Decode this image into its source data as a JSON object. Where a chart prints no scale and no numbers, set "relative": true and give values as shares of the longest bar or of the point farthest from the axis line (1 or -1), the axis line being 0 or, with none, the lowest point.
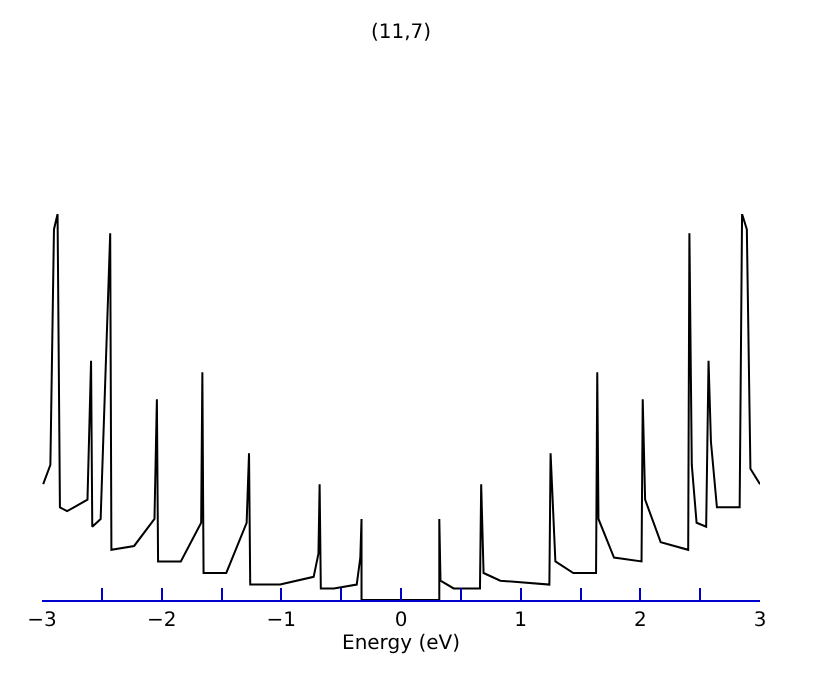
{
  "chart_data": {
    "type": "line",
    "title": "(11,7)",
    "xlabel": "Energy (eV)",
    "relative": true,
    "marker": "none",
    "line_style": "solid",
    "xlim": [
      -3,
      3
    ],
    "xticks": [
      -3,
      {
        "value": -2.5,
        "label": null
      },
      -2,
      {
        "value": -1.5,
        "label": null
      },
      -1,
      {
        "value": -0.5,
        "label": null
      },
      0,
      {
        "value": 0.5,
        "label": null
      },
      1,
      {
        "value": 1.5,
        "label": null
      },
      2,
      {
        "value": 2.5,
        "label": null
      },
      3
    ],
    "series": [
      {
        "color": "#000000",
        "x": [
          -2.99,
          -2.93,
          -2.9,
          -2.87,
          -2.85,
          -2.79,
          -2.62,
          -2.59,
          -2.58,
          -2.51,
          -2.43,
          -2.42,
          -2.23,
          -2.06,
          -2.04,
          -2.03,
          -1.84,
          -1.67,
          -1.66,
          -1.65,
          -1.46,
          -1.29,
          -1.27,
          -1.26,
          -1.01,
          -0.73,
          -0.69,
          -0.68,
          -0.67,
          -0.56,
          -0.37,
          -0.34,
          -0.33,
          -0.33,
          0.32,
          0.32,
          0.33,
          0.44,
          0.66,
          0.67,
          0.69,
          0.83,
          1.24,
          1.25,
          1.29,
          1.44,
          1.63,
          1.64,
          1.65,
          1.78,
          2.01,
          2.02,
          2.04,
          2.17,
          2.4,
          2.41,
          2.43,
          2.47,
          2.55,
          2.57,
          2.59,
          2.64,
          2.83,
          2.85,
          2.89,
          2.92,
          3.0
        ],
        "values": [
          0.3,
          0.35,
          0.96,
          1.0,
          0.24,
          0.23,
          0.26,
          0.62,
          0.19,
          0.21,
          0.95,
          0.13,
          0.14,
          0.21,
          0.52,
          0.1,
          0.1,
          0.2,
          0.59,
          0.07,
          0.07,
          0.2,
          0.38,
          0.04,
          0.04,
          0.06,
          0.12,
          0.3,
          0.03,
          0.03,
          0.04,
          0.11,
          0.21,
          0,
          0,
          0.21,
          0.05,
          0.03,
          0.03,
          0.3,
          0.07,
          0.05,
          0.04,
          0.38,
          0.1,
          0.07,
          0.07,
          0.59,
          0.21,
          0.11,
          0.1,
          0.52,
          0.26,
          0.15,
          0.13,
          0.95,
          0.35,
          0.2,
          0.19,
          0.62,
          0.41,
          0.24,
          0.24,
          1.0,
          0.96,
          0.34,
          0.3
        ]
      }
    ]
  }
}
